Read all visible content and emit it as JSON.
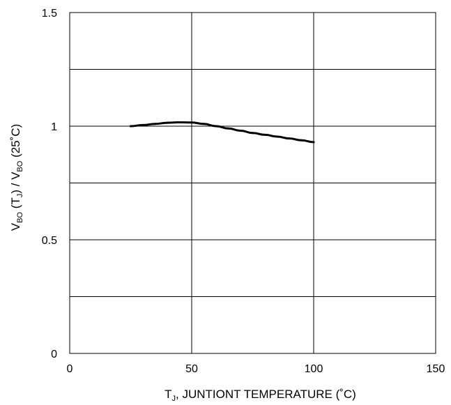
{
  "chart_data": {
    "type": "line",
    "x_label_parts": [
      "T",
      "J",
      ", JUNTIONT TEMPERATURE (˚C)"
    ],
    "y_label_parts": [
      "V",
      "BO",
      " (T",
      "J",
      ") / V",
      "BO",
      " (25˚C)"
    ],
    "xlim": [
      0,
      150
    ],
    "ylim": [
      0,
      1.5
    ],
    "x_ticks": [
      0,
      50,
      100,
      150
    ],
    "x_tick_labels": [
      "0",
      "50",
      "100",
      "150"
    ],
    "y_ticks": [
      0,
      0.5,
      1,
      1.5
    ],
    "y_tick_labels": [
      "0",
      "0.5",
      "1",
      "1.5"
    ],
    "grid_x": [
      50,
      100
    ],
    "grid_y": [
      0.25,
      0.5,
      0.75,
      1.0,
      1.25
    ],
    "grid": true,
    "series": [
      {
        "x": [
          25,
          30,
          35,
          40,
          45,
          50,
          55,
          60,
          65,
          70,
          75,
          80,
          85,
          90,
          95,
          100
        ],
        "y": [
          1.0,
          1.005,
          1.01,
          1.015,
          1.017,
          1.016,
          1.01,
          1.0,
          0.99,
          0.98,
          0.97,
          0.962,
          0.954,
          0.946,
          0.938,
          0.93
        ]
      }
    ],
    "colors": {
      "line": "#000000",
      "grid": "#000000",
      "background": "#ffffff"
    }
  }
}
